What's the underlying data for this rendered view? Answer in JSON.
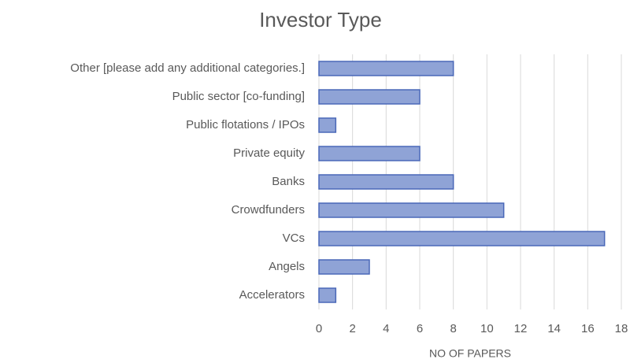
{
  "chart_data": {
    "type": "bar",
    "orientation": "horizontal",
    "title": "Investor Type",
    "x_label": "NO OF PAPERS",
    "categories": [
      "Other [please add any additional categories.]",
      "Public sector [co-funding]",
      "Public flotations / IPOs",
      "Private equity",
      "Banks",
      "Crowdfunders",
      "VCs",
      "Angels",
      "Accelerators"
    ],
    "values": [
      8,
      6,
      1,
      6,
      8,
      11,
      17,
      3,
      1
    ],
    "color": "#8fa3d6",
    "edge_color": "#4a68b8",
    "xlim": [
      0,
      18
    ],
    "xticks": [
      0,
      2,
      4,
      6,
      8,
      10,
      12,
      14,
      16,
      18
    ],
    "grid": true
  }
}
